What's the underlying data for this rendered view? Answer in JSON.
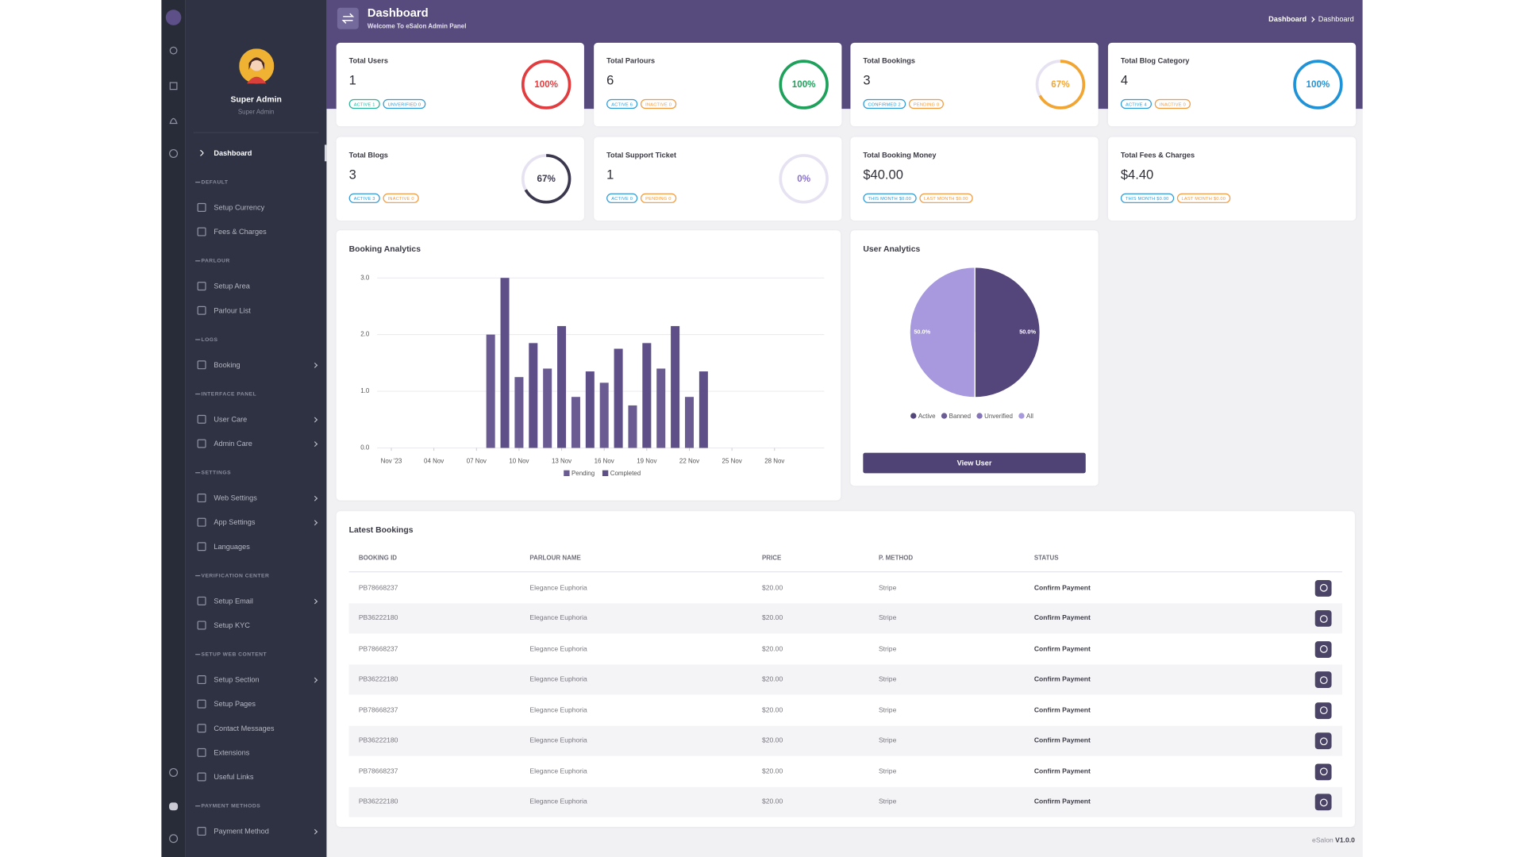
{
  "sidebar": {
    "user": {
      "name": "Super Admin",
      "role": "Super Admin"
    },
    "active_item": "Dashboard",
    "sections": [
      {
        "title": "DEFAULT",
        "items": [
          {
            "label": "Setup Currency",
            "submenu": false
          },
          {
            "label": "Fees & Charges",
            "submenu": false
          }
        ]
      },
      {
        "title": "PARLOUR",
        "items": [
          {
            "label": "Setup Area",
            "submenu": false
          },
          {
            "label": "Parlour List",
            "submenu": false
          }
        ]
      },
      {
        "title": "LOGS",
        "items": [
          {
            "label": "Booking",
            "submenu": true
          }
        ]
      },
      {
        "title": "INTERFACE PANEL",
        "items": [
          {
            "label": "User Care",
            "submenu": true
          },
          {
            "label": "Admin Care",
            "submenu": true
          }
        ]
      },
      {
        "title": "SETTINGS",
        "items": [
          {
            "label": "Web Settings",
            "submenu": true
          },
          {
            "label": "App Settings",
            "submenu": true
          },
          {
            "label": "Languages",
            "submenu": false
          }
        ]
      },
      {
        "title": "VERIFICATION CENTER",
        "items": [
          {
            "label": "Setup Email",
            "submenu": true
          },
          {
            "label": "Setup KYC",
            "submenu": false
          }
        ]
      },
      {
        "title": "SETUP WEB CONTENT",
        "items": [
          {
            "label": "Setup Section",
            "submenu": true
          },
          {
            "label": "Setup Pages",
            "submenu": false
          },
          {
            "label": "Contact Messages",
            "submenu": false
          },
          {
            "label": "Extensions",
            "submenu": false
          },
          {
            "label": "Useful Links",
            "submenu": false
          }
        ]
      },
      {
        "title": "PAYMENT METHODS",
        "items": [
          {
            "label": "Payment Method",
            "submenu": true
          }
        ]
      }
    ]
  },
  "header": {
    "title": "Dashboard",
    "subtitle": "Welcome To eSalon Admin Panel",
    "breadcrumb": [
      "Dashboard",
      "Dashboard"
    ]
  },
  "stat_cards": [
    {
      "title": "Total Users",
      "value": 1,
      "percent": 100,
      "percent_label": "100%",
      "color": "#e23c3f",
      "badges": [
        {
          "text": "ACTIVE 1",
          "color": "#28b39c"
        },
        {
          "text": "UNVERIFIED 0",
          "color": "#2d9bd8"
        }
      ]
    },
    {
      "title": "Total Parlours",
      "value": 6,
      "percent": 100,
      "percent_label": "100%",
      "color": "#1ea25b",
      "badges": [
        {
          "text": "ACTIVE 6",
          "color": "#2d9bd8"
        },
        {
          "text": "INACTIVE 0",
          "color": "#f39a3d"
        }
      ]
    },
    {
      "title": "Total Bookings",
      "value": 3,
      "percent": 67,
      "percent_label": "67%",
      "color": "#f2a531",
      "badges": [
        {
          "text": "CONFIRMED 2",
          "color": "#2d9bd8"
        },
        {
          "text": "PENDING 0",
          "color": "#f39a3d"
        }
      ]
    },
    {
      "title": "Total Blog Category",
      "value": 4,
      "percent": 100,
      "percent_label": "100%",
      "color": "#1f93d8",
      "badges": [
        {
          "text": "ACTIVE 4",
          "color": "#2d9bd8"
        },
        {
          "text": "INACTIVE 0",
          "color": "#f39a3d"
        }
      ]
    },
    {
      "title": "Total Blogs",
      "value": 3,
      "percent": 67,
      "percent_label": "67%",
      "color": "#3b384d",
      "badges": [
        {
          "text": "ACTIVE 3",
          "color": "#2d9bd8"
        },
        {
          "text": "INACTIVE 0",
          "color": "#f39a3d"
        }
      ]
    },
    {
      "title": "Total Support Ticket",
      "value": 1,
      "percent": 0,
      "percent_label": "0%",
      "color": "#8b6fd6",
      "badges": [
        {
          "text": "ACTIVE 0",
          "color": "#2d9bd8"
        },
        {
          "text": "PENDING 0",
          "color": "#f39a3d"
        }
      ]
    },
    {
      "title": "Total Booking Money",
      "value": "$40.00",
      "badges": [
        {
          "text": "THIS MONTH $0.00",
          "color": "#2d9bd8"
        },
        {
          "text": "LAST MONTH $0.00",
          "color": "#f39a3d"
        }
      ]
    },
    {
      "title": "Total Fees & Charges",
      "value": "$4.40",
      "badges": [
        {
          "text": "THIS MONTH $0.00",
          "color": "#2d9bd8"
        },
        {
          "text": "LAST MONTH $0.00",
          "color": "#f39a3d"
        }
      ]
    }
  ],
  "booking_analytics": {
    "type": "bar",
    "title": "Booking Analytics",
    "xlim": [
      0,
      31.5
    ],
    "xticks": [
      {
        "value": 1,
        "label": "Nov '23"
      },
      {
        "value": 4,
        "label": "04 Nov"
      },
      {
        "value": 7,
        "label": "07 Nov"
      },
      {
        "value": 10,
        "label": "10 Nov"
      },
      {
        "value": 13,
        "label": "13 Nov"
      },
      {
        "value": 16,
        "label": "16 Nov"
      },
      {
        "value": 19,
        "label": "19 Nov"
      },
      {
        "value": 22,
        "label": "22 Nov"
      },
      {
        "value": 25,
        "label": "25 Nov"
      },
      {
        "value": 28,
        "label": "28 Nov"
      }
    ],
    "ylim": [
      0,
      3
    ],
    "yticks": [
      {
        "value": 0,
        "label": "0.0"
      },
      {
        "value": 1,
        "label": "1.0"
      },
      {
        "value": 2,
        "label": "2.0"
      },
      {
        "value": 3,
        "label": "3.0"
      }
    ],
    "grid": true,
    "series": [
      {
        "name": "Pending",
        "color": "#6a5b93",
        "x": [
          8,
          10,
          12,
          14,
          16,
          18,
          20,
          22
        ],
        "values": [
          2.0,
          1.25,
          1.4,
          0.9,
          1.15,
          0.75,
          1.4,
          0.9
        ]
      },
      {
        "name": "Completed",
        "color": "#5e4f88",
        "x": [
          9,
          11,
          13,
          15,
          17,
          19,
          21,
          23
        ],
        "values": [
          3.0,
          1.85,
          2.15,
          1.35,
          1.75,
          1.85,
          2.15,
          1.35
        ]
      }
    ]
  },
  "user_analytics": {
    "type": "pie",
    "title": "User Analytics",
    "categories": [
      "Active",
      "Banned",
      "Unverified",
      "All"
    ],
    "values": [
      50,
      0,
      0,
      50
    ],
    "value_labels": [
      "50.0%",
      null,
      null,
      "50.0%"
    ],
    "colors": [
      "#54457a",
      "#6b5c94",
      "#8574b8",
      "#a898de"
    ],
    "button": "View User"
  },
  "latest_bookings": {
    "title": "Latest Bookings",
    "columns": [
      "BOOKING ID",
      "PARLOUR NAME",
      "PRICE",
      "P. METHOD",
      "STATUS"
    ],
    "rows": [
      [
        "PB78668237",
        "Elegance Euphoria",
        "$20.00",
        "Stripe",
        "Confirm Payment"
      ],
      [
        "PB36222180",
        "Elegance Euphoria",
        "$20.00",
        "Stripe",
        "Confirm Payment"
      ],
      [
        "PB78668237",
        "Elegance Euphoria",
        "$20.00",
        "Stripe",
        "Confirm Payment"
      ],
      [
        "PB36222180",
        "Elegance Euphoria",
        "$20.00",
        "Stripe",
        "Confirm Payment"
      ],
      [
        "PB78668237",
        "Elegance Euphoria",
        "$20.00",
        "Stripe",
        "Confirm Payment"
      ],
      [
        "PB36222180",
        "Elegance Euphoria",
        "$20.00",
        "Stripe",
        "Confirm Payment"
      ],
      [
        "PB78668237",
        "Elegance Euphoria",
        "$20.00",
        "Stripe",
        "Confirm Payment"
      ],
      [
        "PB36222180",
        "Elegance Euphoria",
        "$20.00",
        "Stripe",
        "Confirm Payment"
      ]
    ]
  },
  "footer": {
    "app": "eSalon",
    "version": "V1.0.0"
  }
}
